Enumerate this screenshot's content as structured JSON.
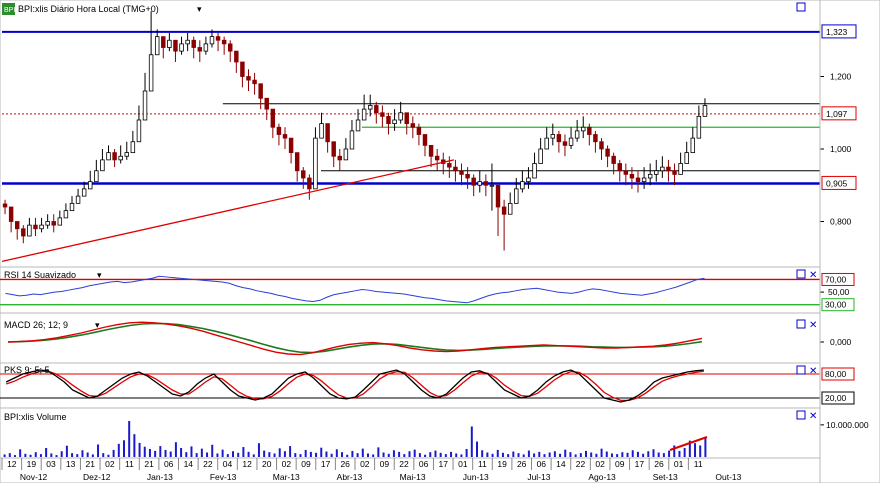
{
  "chart_data": {
    "type": "candlestick",
    "title": "BPI:xlis Diário Hora Local (TMG+0)",
    "colors": {
      "up": "#000000",
      "down": "#8b0000",
      "blue": "#0000cc",
      "red": "#e00000",
      "green": "#2ab52a",
      "volume": "#1a1acc",
      "rsi": "#2a3fd4",
      "price_line": "#e00000"
    },
    "price": {
      "ylim": [
        0.68,
        1.4
      ],
      "y_ticks": [
        {
          "value": 1.2,
          "label": "1,200"
        },
        {
          "value": 1.0,
          "label": "1,000"
        },
        {
          "value": 0.8,
          "label": "0,800"
        }
      ],
      "axis_labels": [
        {
          "value": 1.323,
          "label": "1,323",
          "color": "#0000cc"
        },
        {
          "value": 1.097,
          "label": "1,097",
          "color": "#e00000"
        },
        {
          "value": 0.905,
          "label": "0,905",
          "color": "#e00000"
        }
      ],
      "closes": [
        0.84,
        0.8,
        0.78,
        0.76,
        0.79,
        0.78,
        0.79,
        0.8,
        0.79,
        0.81,
        0.83,
        0.85,
        0.87,
        0.89,
        0.91,
        0.94,
        0.97,
        0.99,
        0.97,
        0.98,
        0.99,
        1.02,
        1.08,
        1.16,
        1.26,
        1.31,
        1.28,
        1.3,
        1.27,
        1.29,
        1.3,
        1.28,
        1.27,
        1.29,
        1.31,
        1.3,
        1.29,
        1.27,
        1.24,
        1.2,
        1.19,
        1.18,
        1.14,
        1.11,
        1.06,
        1.04,
        1.03,
        0.99,
        0.94,
        0.92,
        0.89,
        1.03,
        1.07,
        1.02,
        0.98,
        0.97,
        1.0,
        1.05,
        1.08,
        1.11,
        1.12,
        1.1,
        1.09,
        1.07,
        1.08,
        1.1,
        1.07,
        1.06,
        1.04,
        1.01,
        0.98,
        0.97,
        0.96,
        0.95,
        0.94,
        0.93,
        0.92,
        0.9,
        0.91,
        0.9,
        0.9,
        0.84,
        0.82,
        0.85,
        0.89,
        0.91,
        0.92,
        0.96,
        1.0,
        1.03,
        1.04,
        1.02,
        1.01,
        1.03,
        1.05,
        1.06,
        1.04,
        1.02,
        1.0,
        0.98,
        0.96,
        0.94,
        0.93,
        0.92,
        0.91,
        0.92,
        0.93,
        0.94,
        0.95,
        0.94,
        0.93,
        0.96,
        0.99,
        1.03,
        1.09,
        1.12
      ],
      "highs": [
        0.86,
        0.82,
        0.8,
        0.79,
        0.81,
        0.81,
        0.81,
        0.82,
        0.82,
        0.83,
        0.85,
        0.87,
        0.89,
        0.91,
        0.94,
        0.97,
        1.0,
        1.01,
        1.0,
        1.01,
        1.02,
        1.05,
        1.12,
        1.21,
        1.38,
        1.33,
        1.31,
        1.32,
        1.3,
        1.31,
        1.32,
        1.31,
        1.3,
        1.31,
        1.33,
        1.32,
        1.31,
        1.3,
        1.27,
        1.23,
        1.22,
        1.21,
        1.17,
        1.14,
        1.09,
        1.07,
        1.06,
        1.02,
        0.97,
        0.95,
        0.93,
        1.06,
        1.1,
        1.05,
        1.01,
        1.0,
        1.03,
        1.08,
        1.11,
        1.15,
        1.15,
        1.13,
        1.12,
        1.1,
        1.11,
        1.13,
        1.1,
        1.09,
        1.07,
        1.04,
        1.01,
        1.0,
        0.99,
        0.98,
        0.97,
        0.96,
        0.95,
        0.93,
        0.94,
        0.93,
        0.96,
        0.89,
        0.86,
        0.88,
        0.92,
        0.94,
        0.95,
        0.99,
        1.03,
        1.06,
        1.07,
        1.05,
        1.04,
        1.06,
        1.08,
        1.09,
        1.07,
        1.05,
        1.03,
        1.01,
        0.99,
        0.97,
        0.96,
        0.95,
        0.94,
        0.95,
        0.96,
        0.97,
        0.98,
        0.97,
        0.96,
        0.99,
        1.02,
        1.06,
        1.12,
        1.14
      ],
      "lows": [
        0.82,
        0.77,
        0.75,
        0.74,
        0.77,
        0.76,
        0.77,
        0.78,
        0.77,
        0.79,
        0.81,
        0.83,
        0.85,
        0.87,
        0.89,
        0.92,
        0.95,
        0.97,
        0.95,
        0.96,
        0.97,
        1.0,
        1.05,
        1.13,
        1.23,
        1.28,
        1.25,
        1.27,
        1.24,
        1.26,
        1.27,
        1.25,
        1.24,
        1.26,
        1.28,
        1.27,
        1.26,
        1.24,
        1.21,
        1.17,
        1.16,
        1.15,
        1.11,
        1.08,
        1.03,
        1.01,
        1.0,
        0.96,
        0.91,
        0.89,
        0.86,
        1.0,
        1.04,
        0.99,
        0.95,
        0.94,
        0.97,
        1.02,
        1.05,
        1.08,
        1.09,
        1.07,
        1.06,
        1.04,
        1.05,
        1.07,
        1.04,
        1.03,
        1.01,
        0.98,
        0.95,
        0.94,
        0.93,
        0.92,
        0.91,
        0.9,
        0.89,
        0.87,
        0.88,
        0.87,
        0.83,
        0.76,
        0.72,
        0.82,
        0.86,
        0.88,
        0.89,
        0.93,
        0.97,
        1.0,
        1.01,
        0.99,
        0.98,
        1.0,
        1.02,
        1.03,
        1.01,
        0.99,
        0.97,
        0.95,
        0.93,
        0.91,
        0.9,
        0.89,
        0.88,
        0.89,
        0.9,
        0.91,
        0.92,
        0.91,
        0.9,
        0.93,
        0.96,
        1.0,
        1.06,
        1.09
      ]
    },
    "levels": [
      {
        "value": 1.323,
        "color": "#0000cc",
        "style": "solid",
        "width": 2,
        "from": 0,
        "to": 1
      },
      {
        "value": 0.905,
        "color": "#0000cc",
        "style": "solid",
        "width": 2.5,
        "from": 0,
        "to": 1
      },
      {
        "value": 1.097,
        "color": "#e00000",
        "style": "dotted",
        "width": 1,
        "from": 0,
        "to": 1
      },
      {
        "value": 1.125,
        "color": "#000000",
        "style": "solid",
        "width": 1,
        "from": 0.27,
        "to": 1
      },
      {
        "value": 1.06,
        "color": "#2ab52a",
        "style": "solid",
        "width": 1.3,
        "from": 0.44,
        "to": 1
      },
      {
        "value": 0.94,
        "color": "#000000",
        "style": "solid",
        "width": 1,
        "from": 0.39,
        "to": 1
      }
    ],
    "trendlines": [
      {
        "x1": 0.0,
        "y1": 0.69,
        "x2": 0.64,
        "y2": 0.97,
        "color": "#e00000"
      }
    ],
    "rsi": {
      "title": "RSI 14 Suavizado",
      "ylim": [
        20,
        85
      ],
      "levels": [
        {
          "value": 70,
          "label": "70,00",
          "color": "#e00000"
        },
        {
          "value": 30,
          "label": "30,00",
          "color": "#2ab52a"
        }
      ],
      "ticks": [
        {
          "value": 50,
          "label": "50,00"
        }
      ],
      "values": [
        48,
        46,
        44,
        45,
        47,
        46,
        48,
        50,
        51,
        53,
        55,
        57,
        60,
        62,
        64,
        66,
        67,
        65,
        66,
        68,
        70,
        72,
        75,
        74,
        73,
        72,
        71,
        70,
        69,
        68,
        67,
        66,
        64,
        60,
        57,
        55,
        52,
        50,
        48,
        45,
        43,
        40,
        38,
        36,
        35,
        37,
        42,
        46,
        48,
        50,
        52,
        54,
        53,
        51,
        50,
        49,
        48,
        47,
        45,
        43,
        41,
        40,
        38,
        36,
        35,
        34,
        33,
        36,
        40,
        44,
        47,
        49,
        50,
        52,
        54,
        55,
        56,
        54,
        52,
        50,
        49,
        48,
        50,
        53,
        55,
        54,
        52,
        50,
        48,
        47,
        46,
        45,
        47,
        49,
        52,
        55,
        58,
        62,
        66,
        70,
        72
      ]
    },
    "macd": {
      "title": "MACD 26; 12; 9",
      "ylim": [
        -0.06,
        0.08
      ],
      "ticks": [
        {
          "value": 0.0,
          "label": "0,000"
        }
      ],
      "macd": [
        0.0,
        0.002,
        0.004,
        0.008,
        0.014,
        0.022,
        0.03,
        0.04,
        0.05,
        0.058,
        0.064,
        0.066,
        0.064,
        0.06,
        0.054,
        0.046,
        0.036,
        0.024,
        0.012,
        0.0,
        -0.012,
        -0.024,
        -0.034,
        -0.04,
        -0.042,
        -0.036,
        -0.026,
        -0.016,
        -0.008,
        -0.004,
        -0.002,
        -0.006,
        -0.012,
        -0.02,
        -0.026,
        -0.03,
        -0.032,
        -0.03,
        -0.026,
        -0.022,
        -0.018,
        -0.016,
        -0.014,
        -0.012,
        -0.01,
        -0.012,
        -0.014,
        -0.016,
        -0.018,
        -0.02,
        -0.02,
        -0.018,
        -0.016,
        -0.014,
        -0.01,
        -0.004,
        0.004,
        0.012
      ],
      "signal": [
        0.0,
        0.001,
        0.003,
        0.006,
        0.01,
        0.016,
        0.023,
        0.031,
        0.04,
        0.048,
        0.055,
        0.06,
        0.062,
        0.061,
        0.058,
        0.052,
        0.045,
        0.036,
        0.026,
        0.015,
        0.004,
        -0.008,
        -0.019,
        -0.028,
        -0.034,
        -0.035,
        -0.031,
        -0.024,
        -0.017,
        -0.011,
        -0.007,
        -0.006,
        -0.008,
        -0.013,
        -0.018,
        -0.023,
        -0.027,
        -0.028,
        -0.027,
        -0.025,
        -0.022,
        -0.019,
        -0.017,
        -0.015,
        -0.013,
        -0.013,
        -0.013,
        -0.014,
        -0.016,
        -0.017,
        -0.018,
        -0.018,
        -0.017,
        -0.016,
        -0.014,
        -0.01,
        -0.005,
        0.001
      ]
    },
    "stoch": {
      "title": "PKS 9; 5; 5",
      "ylim": [
        0,
        100
      ],
      "levels": [
        {
          "value": 80,
          "label": "80,00",
          "color": "#e00000"
        },
        {
          "value": 20,
          "label": "20,00",
          "color": "#000000"
        }
      ],
      "k": [
        60,
        70,
        80,
        85,
        90,
        88,
        75,
        60,
        40,
        30,
        20,
        25,
        40,
        55,
        70,
        80,
        85,
        75,
        60,
        45,
        30,
        25,
        35,
        55,
        70,
        80,
        60,
        40,
        25,
        20,
        15,
        20,
        30,
        50,
        70,
        80,
        85,
        70,
        50,
        30,
        20,
        18,
        22,
        40,
        60,
        80,
        85,
        90,
        80,
        60,
        40,
        25,
        20,
        30,
        50,
        70,
        85,
        88,
        80,
        60,
        40,
        30,
        20,
        25,
        40,
        60,
        75,
        85,
        90,
        80,
        60,
        40,
        20,
        15,
        10,
        15,
        25,
        40,
        60,
        70,
        75,
        80,
        85,
        88,
        90
      ],
      "d": [
        55,
        62,
        72,
        80,
        86,
        87,
        80,
        68,
        52,
        38,
        26,
        24,
        32,
        46,
        60,
        73,
        80,
        78,
        68,
        54,
        40,
        30,
        30,
        44,
        60,
        73,
        68,
        52,
        35,
        24,
        18,
        18,
        24,
        38,
        56,
        72,
        80,
        76,
        62,
        44,
        28,
        20,
        20,
        30,
        48,
        68,
        80,
        86,
        84,
        70,
        52,
        34,
        24,
        26,
        40,
        58,
        75,
        84,
        82,
        70,
        52,
        38,
        26,
        24,
        32,
        48,
        65,
        78,
        86,
        84,
        72,
        54,
        34,
        22,
        14,
        14,
        20,
        32,
        48,
        62,
        70,
        76,
        80,
        84,
        87
      ]
    },
    "volume": {
      "title": "BPI:xlis Volume",
      "ylim": [
        0,
        14000000
      ],
      "ticks": [
        {
          "value": 10000000,
          "label": "10.000.000"
        }
      ],
      "values": [
        0.8,
        1.2,
        0.6,
        2.4,
        1.0,
        0.7,
        1.5,
        0.9,
        2.8,
        1.1,
        0.6,
        1.8,
        3.5,
        1.2,
        0.9,
        2.1,
        1.4,
        0.8,
        3.9,
        1.2,
        0.7,
        2.2,
        4.1,
        5.2,
        11.2,
        7.1,
        4.4,
        3.2,
        2.5,
        1.9,
        3.4,
        2.2,
        1.7,
        4.6,
        2.8,
        1.5,
        3.3,
        1.2,
        2.6,
        1.4,
        3.8,
        1.1,
        2.3,
        0.9,
        1.8,
        1.3,
        3.1,
        1.6,
        0.8,
        4.3,
        2.0,
        1.5,
        1.1,
        2.7,
        1.8,
        3.4,
        1.2,
        0.9,
        2.2,
        1.6,
        1.3,
        2.9,
        1.7,
        1.0,
        2.4,
        1.5,
        0.7,
        1.9,
        1.2,
        2.6,
        1.1,
        0.8,
        3.0,
        1.4,
        1.0,
        2.1,
        1.6,
        0.9,
        1.8,
        2.3,
        1.2,
        0.7,
        1.5,
        2.0,
        1.3,
        0.9,
        1.6,
        1.1,
        0.8,
        2.5,
        9.5,
        4.8,
        2.1,
        1.4,
        1.0,
        2.2,
        1.3,
        0.9,
        1.7,
        1.2,
        0.8,
        2.0,
        1.1,
        1.6,
        0.9,
        1.4,
        1.8,
        1.0,
        2.3,
        1.5,
        0.8,
        1.2,
        1.9,
        1.4,
        1.0,
        2.6,
        1.7,
        1.1,
        0.9,
        1.5,
        1.3,
        2.1,
        1.6,
        1.0,
        1.8,
        2.4,
        1.4,
        1.2,
        2.0,
        3.6,
        1.9,
        2.8,
        5.1,
        4.3,
        3.6,
        6.2
      ]
    },
    "x_day_ticks": [
      "12",
      "19",
      "03",
      "13",
      "21",
      "02",
      "11",
      "21",
      "06",
      "14",
      "22",
      "04",
      "12",
      "20",
      "02",
      "09",
      "17",
      "26",
      "02",
      "09",
      "22",
      "06",
      "17",
      "01",
      "11",
      "19",
      "26",
      "06",
      "14",
      "22",
      "02",
      "09",
      "17",
      "26",
      "01",
      "11"
    ],
    "x_month_ticks": [
      "Nov-12",
      "Dez-12",
      "Jan-13",
      "Fev-13",
      "Mar-13",
      "Abr-13",
      "Mai-13",
      "Jun-13",
      "Jul-13",
      "Ago-13",
      "Set-13",
      "Out-13"
    ]
  }
}
